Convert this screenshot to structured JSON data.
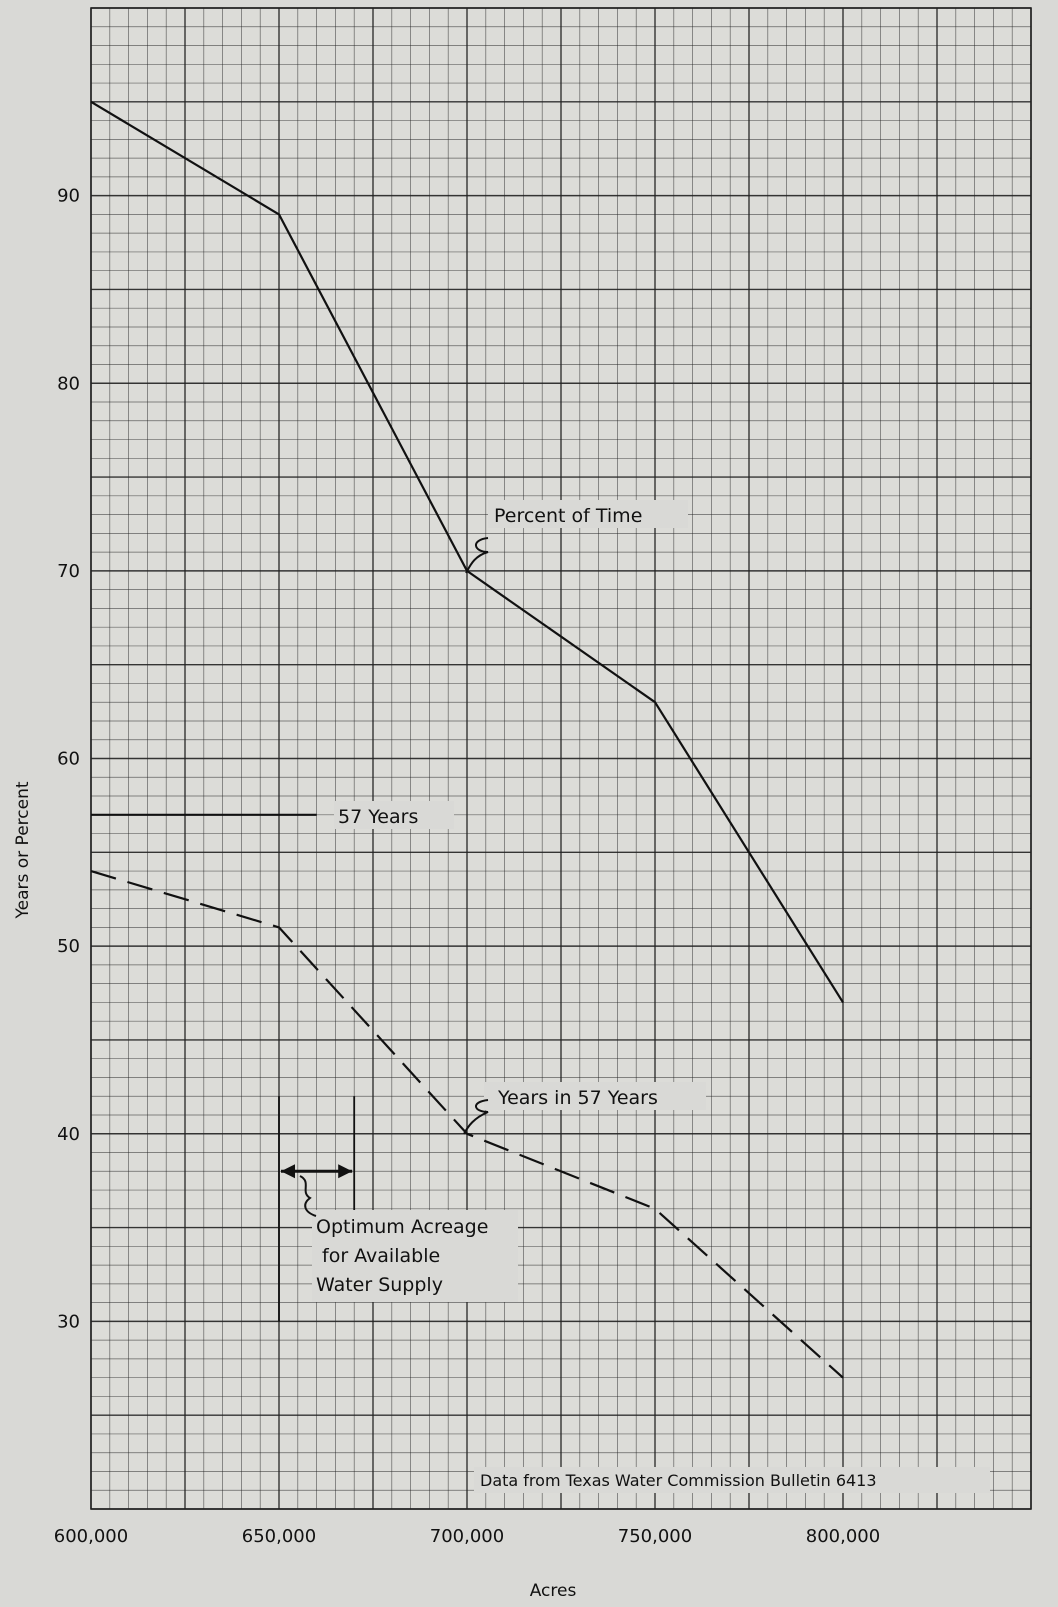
{
  "chart_data": {
    "type": "line",
    "title": "",
    "xlabel": "Acres",
    "ylabel": "Years or Percent",
    "xlim": [
      600000,
      850000
    ],
    "ylim": [
      20,
      100
    ],
    "x_ticks": [
      600000,
      650000,
      700000,
      750000,
      800000
    ],
    "x_tick_labels": [
      "600,000",
      "650,000",
      "700,000",
      "750,000",
      "800,000"
    ],
    "y_ticks": [
      30,
      40,
      50,
      60,
      70,
      80,
      90
    ],
    "y_tick_labels": [
      "30",
      "40",
      "50",
      "60",
      "70",
      "80",
      "90"
    ],
    "grid": true,
    "series": [
      {
        "name": "Percent of Time",
        "style": "solid",
        "x": [
          600000,
          650000,
          700000,
          750000,
          800000
        ],
        "y": [
          95,
          89,
          70,
          63,
          47
        ]
      },
      {
        "name": "Years in 57 Years",
        "style": "dashed",
        "x": [
          600000,
          650000,
          700000,
          750000,
          800000
        ],
        "y": [
          54,
          51,
          40,
          36,
          27
        ]
      }
    ],
    "reference_line": {
      "label": "57 Years",
      "y": 57,
      "x": [
        600000,
        660000
      ]
    },
    "optimum_range": {
      "x": [
        650000,
        670000
      ]
    },
    "annotations": {
      "percent_of_time": "Percent of Time",
      "years_in_57": "Years in 57 Years",
      "fifty_seven_years": "57 Years",
      "optimum_line1": "Optimum Acreage",
      "optimum_line2": "for Available",
      "optimum_line3": "Water Supply",
      "source": "Data from Texas Water Commission Bulletin 6413"
    }
  }
}
